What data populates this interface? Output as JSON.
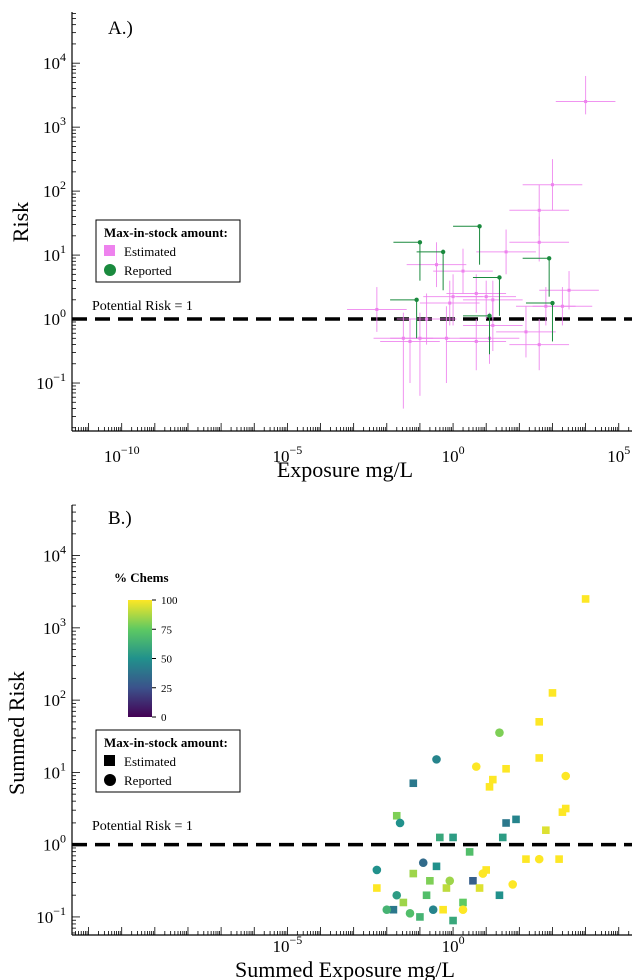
{
  "chart_data": [
    {
      "type": "scatter",
      "panel_label": "A.)",
      "xlabel": "Exposure mg/L",
      "ylabel": "Risk",
      "xscale": "log",
      "yscale": "log",
      "xlim_exp": [
        -11.5,
        5.4
      ],
      "ylim_exp": [
        -1.75,
        4.8
      ],
      "x_ticks": [
        {
          "exp": -10,
          "label": "10^-10"
        },
        {
          "exp": -5,
          "label": "10^-5"
        },
        {
          "exp": 0,
          "label": "10^0"
        },
        {
          "exp": 5,
          "label": "10^5"
        }
      ],
      "y_ticks": [
        {
          "exp": -1,
          "label": "10^-1"
        },
        {
          "exp": 0,
          "label": "10^0"
        },
        {
          "exp": 1,
          "label": "10^1"
        },
        {
          "exp": 2,
          "label": "10^2"
        },
        {
          "exp": 3,
          "label": "10^3"
        },
        {
          "exp": 4,
          "label": "10^4"
        }
      ],
      "reference_line": {
        "y": 1,
        "label": "Potential Risk = 1",
        "style": "dashed",
        "color": "#000000"
      },
      "legend": {
        "title": "Max-in-stock amount:",
        "placement": "center-left",
        "entries": [
          {
            "label": "Estimated",
            "marker": "square",
            "color": "#ee82ee"
          },
          {
            "label": "Reported",
            "marker": "circle",
            "color": "#1a8a3e"
          }
        ]
      },
      "series": [
        {
          "name": "Estimated",
          "color": "#ee82ee",
          "points_log10": [
            [
              4.0,
              3.4,
              3.2,
              3.8
            ],
            [
              3.0,
              2.1,
              1.7,
              2.5
            ],
            [
              2.6,
              1.7,
              1.3,
              2.1
            ],
            [
              2.6,
              1.2,
              0.9,
              1.6
            ],
            [
              1.6,
              1.05,
              0.7,
              1.4
            ],
            [
              -0.5,
              0.85,
              0.5,
              1.2
            ],
            [
              0.3,
              0.75,
              0.4,
              1.1
            ],
            [
              0.7,
              0.4,
              0.1,
              0.7
            ],
            [
              1.2,
              0.3,
              0.0,
              0.6
            ],
            [
              1.0,
              0.35,
              0.0,
              0.6
            ],
            [
              -0.1,
              0.25,
              -0.1,
              0.6
            ],
            [
              3.3,
              0.2,
              -0.1,
              0.5
            ],
            [
              2.8,
              0.2,
              -0.1,
              0.5
            ],
            [
              3.5,
              0.45,
              0.15,
              0.75
            ],
            [
              -2.3,
              0.15,
              -0.2,
              0.5
            ],
            [
              1.2,
              -0.1,
              -0.5,
              0.3
            ],
            [
              2.2,
              -0.2,
              -0.6,
              0.2
            ],
            [
              1.1,
              -0.3,
              -0.7,
              0.1
            ],
            [
              -0.2,
              -0.3,
              -1.0,
              0.2
            ],
            [
              0.7,
              -0.35,
              -0.8,
              0.0
            ],
            [
              -1.0,
              -0.3,
              -1.2,
              0.1
            ],
            [
              2.6,
              -0.4,
              -0.8,
              0.0
            ],
            [
              -1.3,
              -0.35,
              -1.0,
              0.0
            ],
            [
              -1.5,
              -0.3,
              -1.4,
              0.1
            ],
            [
              0.0,
              0.35,
              -0.1,
              0.7
            ],
            [
              -0.8,
              0.0,
              -0.4,
              0.4
            ]
          ]
        },
        {
          "name": "Reported",
          "color": "#1a8a3e",
          "points_log10": [
            [
              -1.0,
              1.2
            ],
            [
              0.8,
              1.45
            ],
            [
              -0.3,
              1.05
            ],
            [
              1.4,
              0.65
            ],
            [
              2.9,
              0.95
            ],
            [
              -1.1,
              0.3
            ],
            [
              3.0,
              0.25
            ],
            [
              1.1,
              0.05
            ]
          ]
        }
      ]
    },
    {
      "type": "scatter",
      "panel_label": "B.)",
      "xlabel": "Summed Exposure mg/L",
      "ylabel": "Summed Risk",
      "xscale": "log",
      "yscale": "log",
      "xlim_exp": [
        -11.5,
        5.4
      ],
      "ylim_exp": [
        -1.25,
        4.7
      ],
      "x_ticks": [
        {
          "exp": -5,
          "label": "10^-5"
        },
        {
          "exp": 0,
          "label": "10^0"
        }
      ],
      "y_ticks": [
        {
          "exp": -1,
          "label": "10^-1"
        },
        {
          "exp": 0,
          "label": "10^0"
        },
        {
          "exp": 1,
          "label": "10^1"
        },
        {
          "exp": 2,
          "label": "10^2"
        },
        {
          "exp": 3,
          "label": "10^3"
        },
        {
          "exp": 4,
          "label": "10^4"
        }
      ],
      "reference_line": {
        "y": 1,
        "label": "Potential Risk = 1",
        "style": "dashed",
        "color": "#000000"
      },
      "colorbar": {
        "title": "% Chems",
        "min": 0,
        "max": 100,
        "ticks": [
          0,
          25,
          50,
          75,
          100
        ],
        "colormap": "viridis",
        "placement": "left"
      },
      "legend": {
        "title": "Max-in-stock amount:",
        "placement": "center-left",
        "entries": [
          {
            "label": "Estimated",
            "marker": "square",
            "color": "#000000"
          },
          {
            "label": "Reported",
            "marker": "circle",
            "color": "#000000"
          }
        ]
      },
      "series": [
        {
          "name": "Estimated",
          "marker": "square",
          "points_log10_pct": [
            [
              4.0,
              3.4,
              100
            ],
            [
              3.0,
              2.1,
              100
            ],
            [
              2.6,
              1.7,
              100
            ],
            [
              2.6,
              1.2,
              100
            ],
            [
              1.6,
              1.05,
              100
            ],
            [
              1.2,
              0.9,
              100
            ],
            [
              1.1,
              0.8,
              100
            ],
            [
              3.4,
              0.5,
              100
            ],
            [
              3.3,
              0.45,
              100
            ],
            [
              2.8,
              0.2,
              95
            ],
            [
              -1.2,
              0.85,
              40
            ],
            [
              1.9,
              0.35,
              45
            ],
            [
              1.6,
              0.3,
              40
            ],
            [
              -1.7,
              0.4,
              80
            ],
            [
              0.0,
              0.1,
              55
            ],
            [
              1.5,
              0.1,
              55
            ],
            [
              2.2,
              -0.2,
              100
            ],
            [
              3.2,
              -0.2,
              100
            ],
            [
              1.4,
              -0.7,
              50
            ],
            [
              -0.4,
              0.1,
              60
            ],
            [
              0.5,
              -0.1,
              70
            ],
            [
              -1.2,
              -0.4,
              85
            ],
            [
              -0.7,
              -0.5,
              80
            ],
            [
              -0.2,
              -0.6,
              90
            ],
            [
              0.3,
              -0.8,
              75
            ],
            [
              -1.0,
              -1.0,
              65
            ],
            [
              -0.3,
              -0.9,
              100
            ],
            [
              0.0,
              -1.05,
              60
            ],
            [
              -1.8,
              -0.9,
              40
            ],
            [
              -2.3,
              -0.6,
              100
            ],
            [
              -0.8,
              -0.7,
              70
            ],
            [
              0.6,
              -0.5,
              30
            ],
            [
              1.0,
              -0.35,
              100
            ],
            [
              0.8,
              -0.6,
              95
            ],
            [
              -1.5,
              -0.8,
              85
            ],
            [
              -0.5,
              -0.3,
              50
            ]
          ]
        },
        {
          "name": "Reported",
          "marker": "circle",
          "points_log10_pct": [
            [
              1.4,
              1.55,
              80
            ],
            [
              -0.5,
              1.18,
              45
            ],
            [
              0.7,
              1.08,
              100
            ],
            [
              3.4,
              0.95,
              100
            ],
            [
              -1.6,
              0.3,
              50
            ],
            [
              2.6,
              -0.2,
              100
            ],
            [
              1.8,
              -0.55,
              100
            ],
            [
              -0.9,
              -0.25,
              35
            ],
            [
              -2.3,
              -0.35,
              50
            ],
            [
              -1.7,
              -0.7,
              55
            ],
            [
              -0.6,
              -0.9,
              45
            ],
            [
              -0.1,
              -0.5,
              85
            ],
            [
              0.3,
              -0.9,
              100
            ],
            [
              -1.3,
              -0.95,
              70
            ],
            [
              -2.0,
              -0.9,
              65
            ],
            [
              0.9,
              -0.4,
              100
            ]
          ]
        }
      ]
    }
  ]
}
